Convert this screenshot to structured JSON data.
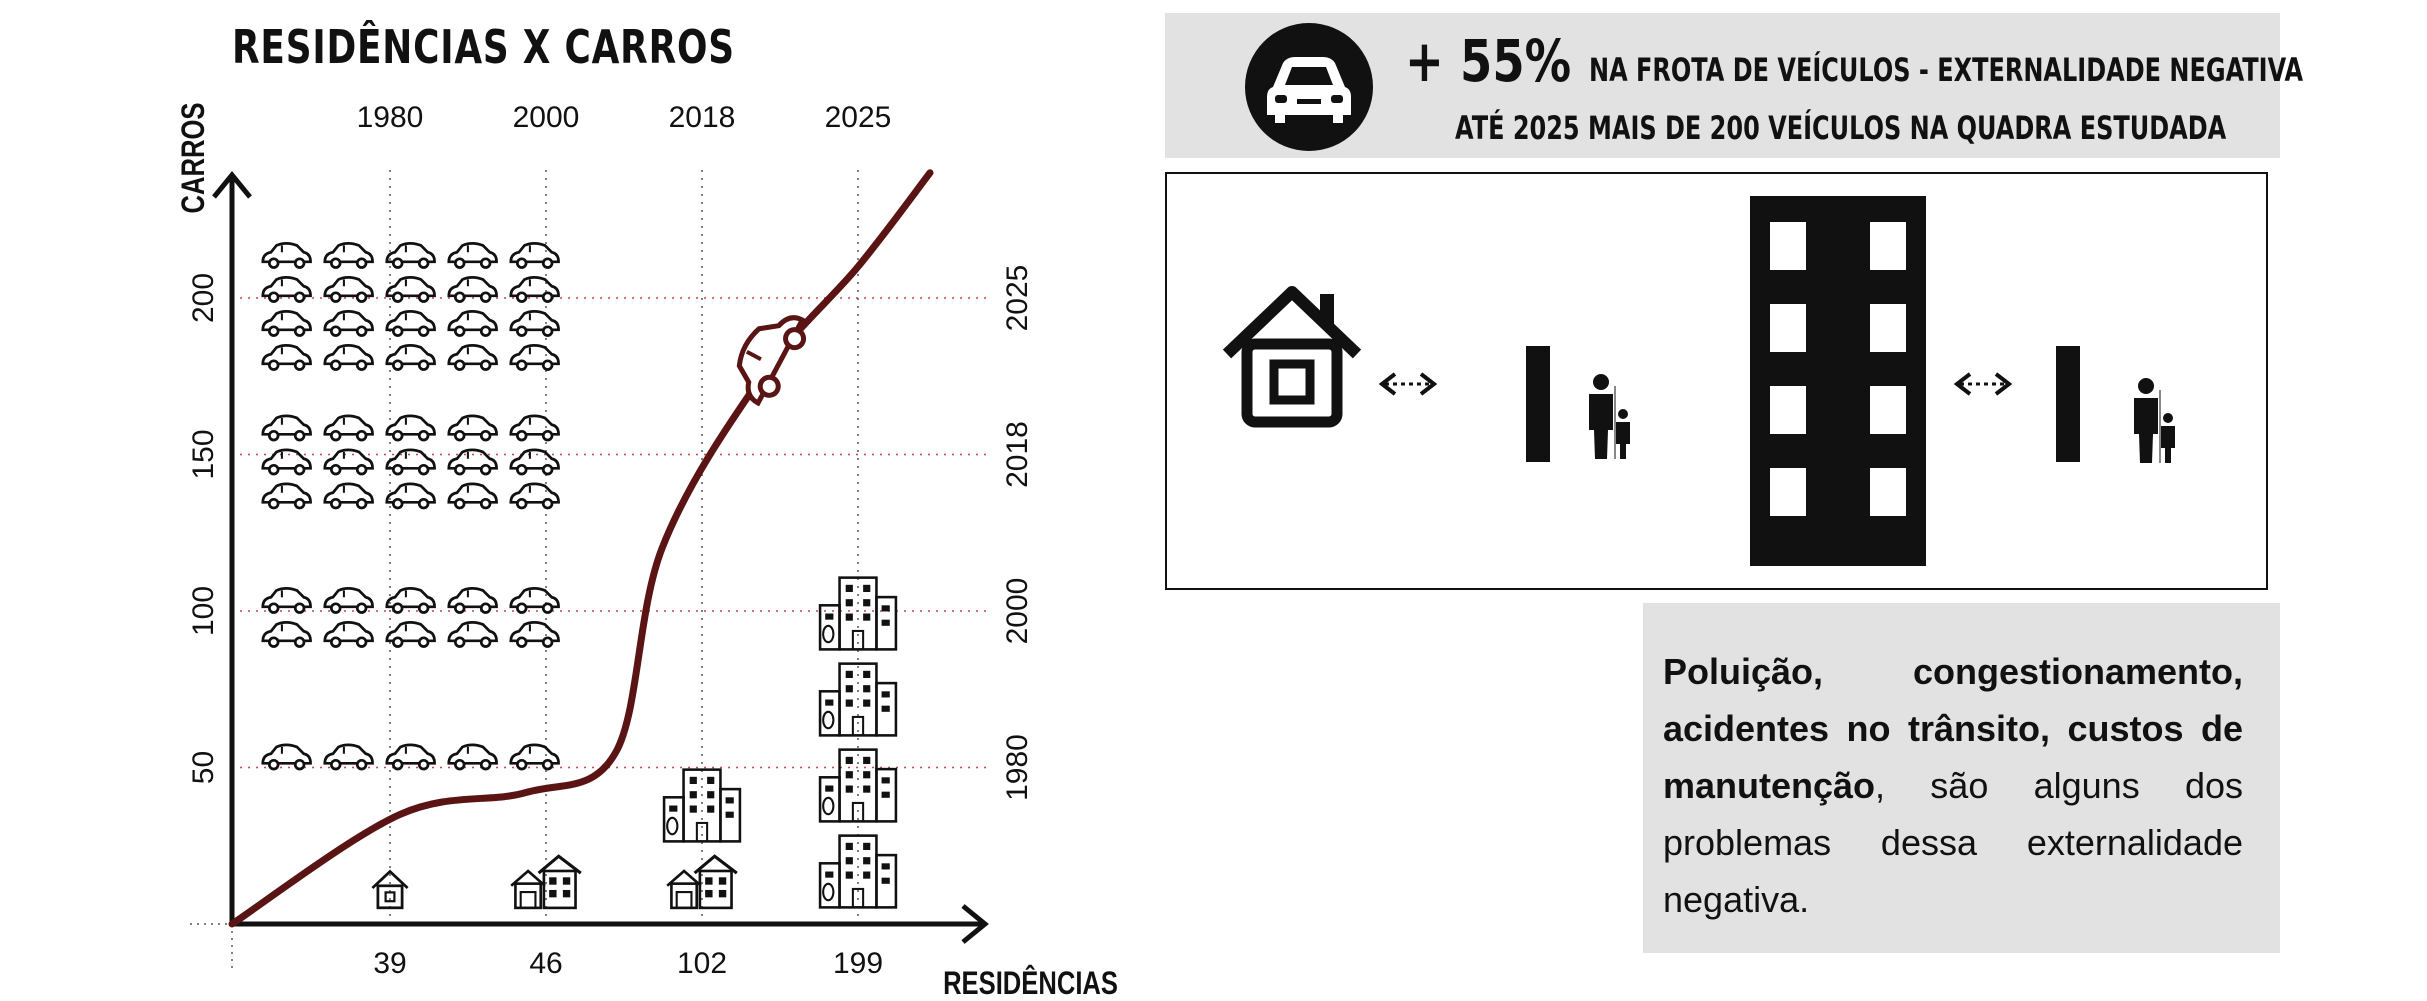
{
  "title": "RESIDÊNCIAS X CARROS",
  "banner": {
    "icon": "car-icon",
    "percent": "+ 55%",
    "line1": "NA FROTA DE VEÍCULOS - EXTERNALIDADE NEGATIVA",
    "line2": "ATÉ 2025 MAIS DE 200 VEÍCULOS NA QUADRA ESTUDADA"
  },
  "scene_icons": [
    "house-icon",
    "double-arrow-icon",
    "bar-icon",
    "people-icon",
    "building-icon",
    "double-arrow-icon",
    "bar-icon",
    "people-icon"
  ],
  "text_box": {
    "bold": "Poluição, congestionamento, acidentes no trânsito, custos de manutenção",
    "normal": ", são alguns dos problemas dessa externalidade negativa."
  },
  "chart_data": {
    "type": "line",
    "title": "RESIDÊNCIAS X CARROS",
    "xlabel": "RESIDÊNCIAS",
    "ylabel": "CARROS",
    "x_ticks": [
      "39",
      "46",
      "102",
      "199"
    ],
    "x_top_ticks": [
      "1980",
      "2000",
      "2018",
      "2025"
    ],
    "y_ticks": [
      "50",
      "100",
      "150",
      "200"
    ],
    "y_right_ticks": [
      "1980",
      "2000",
      "2018",
      "2025"
    ],
    "ylim": [
      0,
      240
    ],
    "grid": "dotted",
    "line_color": "#5a1414",
    "series": [
      {
        "values": [
          0,
          35,
          42,
          55,
          120,
          175,
          210,
          240
        ]
      }
    ],
    "car_rows": [
      {
        "year": "1980",
        "rows": 1
      },
      {
        "year": "2000",
        "rows": 2
      },
      {
        "year": "2018",
        "rows": 3
      },
      {
        "year": "2025",
        "rows": 4
      }
    ],
    "cars_per_row": 5,
    "residence_icons": [
      {
        "label": "39",
        "icons": [
          "small-house-icon"
        ]
      },
      {
        "label": "46",
        "icons": [
          "houses-icon"
        ]
      },
      {
        "label": "102",
        "icons": [
          "houses-icon",
          "building-icon"
        ]
      },
      {
        "label": "199",
        "icons": [
          "building-icon",
          "building-icon",
          "building-icon",
          "building-icon"
        ]
      }
    ]
  }
}
